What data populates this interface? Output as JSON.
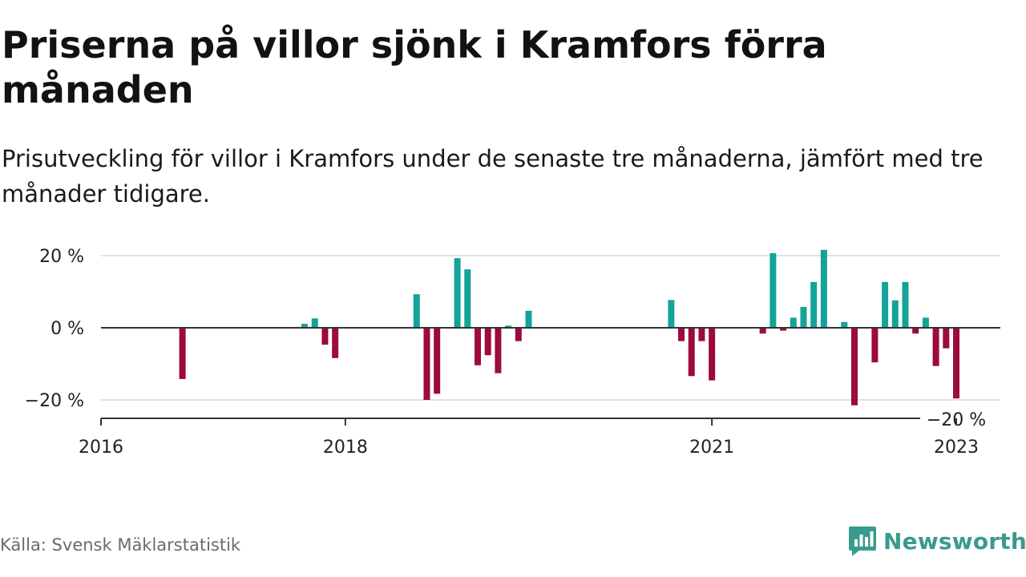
{
  "header": {
    "title": "Priserna på villor sjönk i Kramfors förra månaden",
    "subtitle": "Prisutveckling för villor i Kramfors under de senaste tre månaderna, jämfört med tre månader tidigare."
  },
  "footer": {
    "source": "Källa: Svensk Mäklarstatistik",
    "brand": "Newsworthy",
    "brand_icon": "bar-chart-logo-icon"
  },
  "colors": {
    "positive": "#13a39a",
    "negative": "#9c0a3e",
    "brand": "#3a9a8d"
  },
  "chart_data": {
    "type": "bar",
    "title": "",
    "xlabel": "",
    "ylabel": "",
    "ylim": [
      -25,
      22
    ],
    "grid": true,
    "y_ticks": [
      {
        "value": 20,
        "label": "20 %"
      },
      {
        "value": 0,
        "label": "0 %"
      },
      {
        "value": -20,
        "label": "−20 %"
      }
    ],
    "x_ticks": [
      {
        "value": "2016-01",
        "label": "2016"
      },
      {
        "value": "2018-01",
        "label": "2018"
      },
      {
        "value": "2021-01",
        "label": "2021"
      },
      {
        "value": "2023-01",
        "label": "2023"
      }
    ],
    "annotation": {
      "label": "−20 %",
      "x": "2023-01"
    },
    "x": [
      "2016-09",
      "2017-09",
      "2017-10",
      "2017-11",
      "2017-12",
      "2018-08",
      "2018-09",
      "2018-10",
      "2018-12",
      "2019-01",
      "2019-02",
      "2019-03",
      "2019-04",
      "2019-05",
      "2019-06",
      "2019-07",
      "2020-09",
      "2020-10",
      "2020-11",
      "2020-12",
      "2021-01",
      "2021-06",
      "2021-07",
      "2021-08",
      "2021-09",
      "2021-10",
      "2021-11",
      "2021-12",
      "2022-02",
      "2022-03",
      "2022-05",
      "2022-06",
      "2022-07",
      "2022-08",
      "2022-09",
      "2022-10",
      "2022-11",
      "2022-12",
      "2023-01"
    ],
    "values": [
      -14.2,
      1.1,
      2.6,
      -4.7,
      -8.4,
      9.3,
      -20.0,
      -18.3,
      19.3,
      16.2,
      -10.4,
      -7.6,
      -12.6,
      0.6,
      -3.7,
      4.7,
      7.7,
      -3.7,
      -13.4,
      -3.7,
      -14.6,
      -1.6,
      20.7,
      -0.8,
      2.8,
      5.8,
      12.7,
      21.6,
      1.6,
      -21.5,
      -9.6,
      12.7,
      7.6,
      12.7,
      -1.6,
      2.8,
      -10.6,
      -5.7,
      -19.6
    ]
  }
}
